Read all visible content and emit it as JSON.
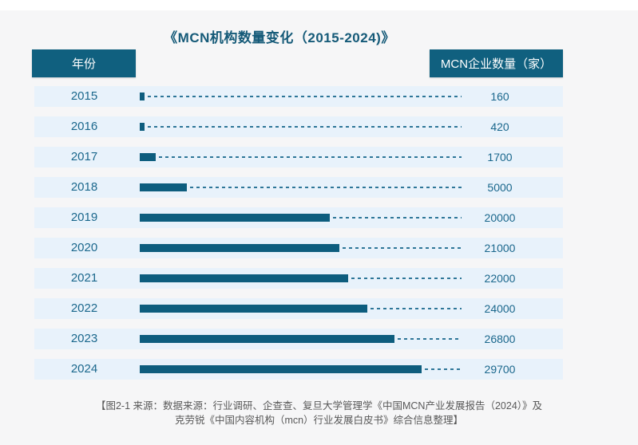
{
  "page": {
    "background_color": "#f6f6f7",
    "top_strip_color": "#ffffff"
  },
  "title": "《MCN机构数量变化（2015-2024)》",
  "table_headers": {
    "year": "年份",
    "count": "MCN企业数量（家）"
  },
  "colors": {
    "accent_bar": "#0d5d7e",
    "header_box_bg": "#10607f",
    "header_box_text": "#ffffff",
    "row_bg": "#e8f2fb",
    "label_text": "#1a678c",
    "title_text": "#155a78",
    "dash_line": "#2e7698",
    "footer_text": "#595959"
  },
  "chart_data": {
    "type": "bar",
    "orientation": "horizontal",
    "title": "《MCN机构数量变化（2015-2024)》",
    "xlabel": "MCN企业数量（家）",
    "ylabel": "年份",
    "categories": [
      "2015",
      "2016",
      "2017",
      "2018",
      "2019",
      "2020",
      "2021",
      "2022",
      "2023",
      "2024"
    ],
    "values": [
      160,
      420,
      1700,
      5000,
      20000,
      21000,
      22000,
      24000,
      26800,
      29700
    ],
    "xlim": [
      0,
      29700
    ],
    "grid": false,
    "legend": false,
    "leader_line_style": "dashed"
  },
  "footer": {
    "line1": "【图2-1 来源：数据来源：行业调研、企查查、复旦大学管理学《中国MCN产业发展报告（2024）》及",
    "line2": "克劳锐《中国内容机构（mcn）行业发展白皮书》综合信息整理】"
  }
}
